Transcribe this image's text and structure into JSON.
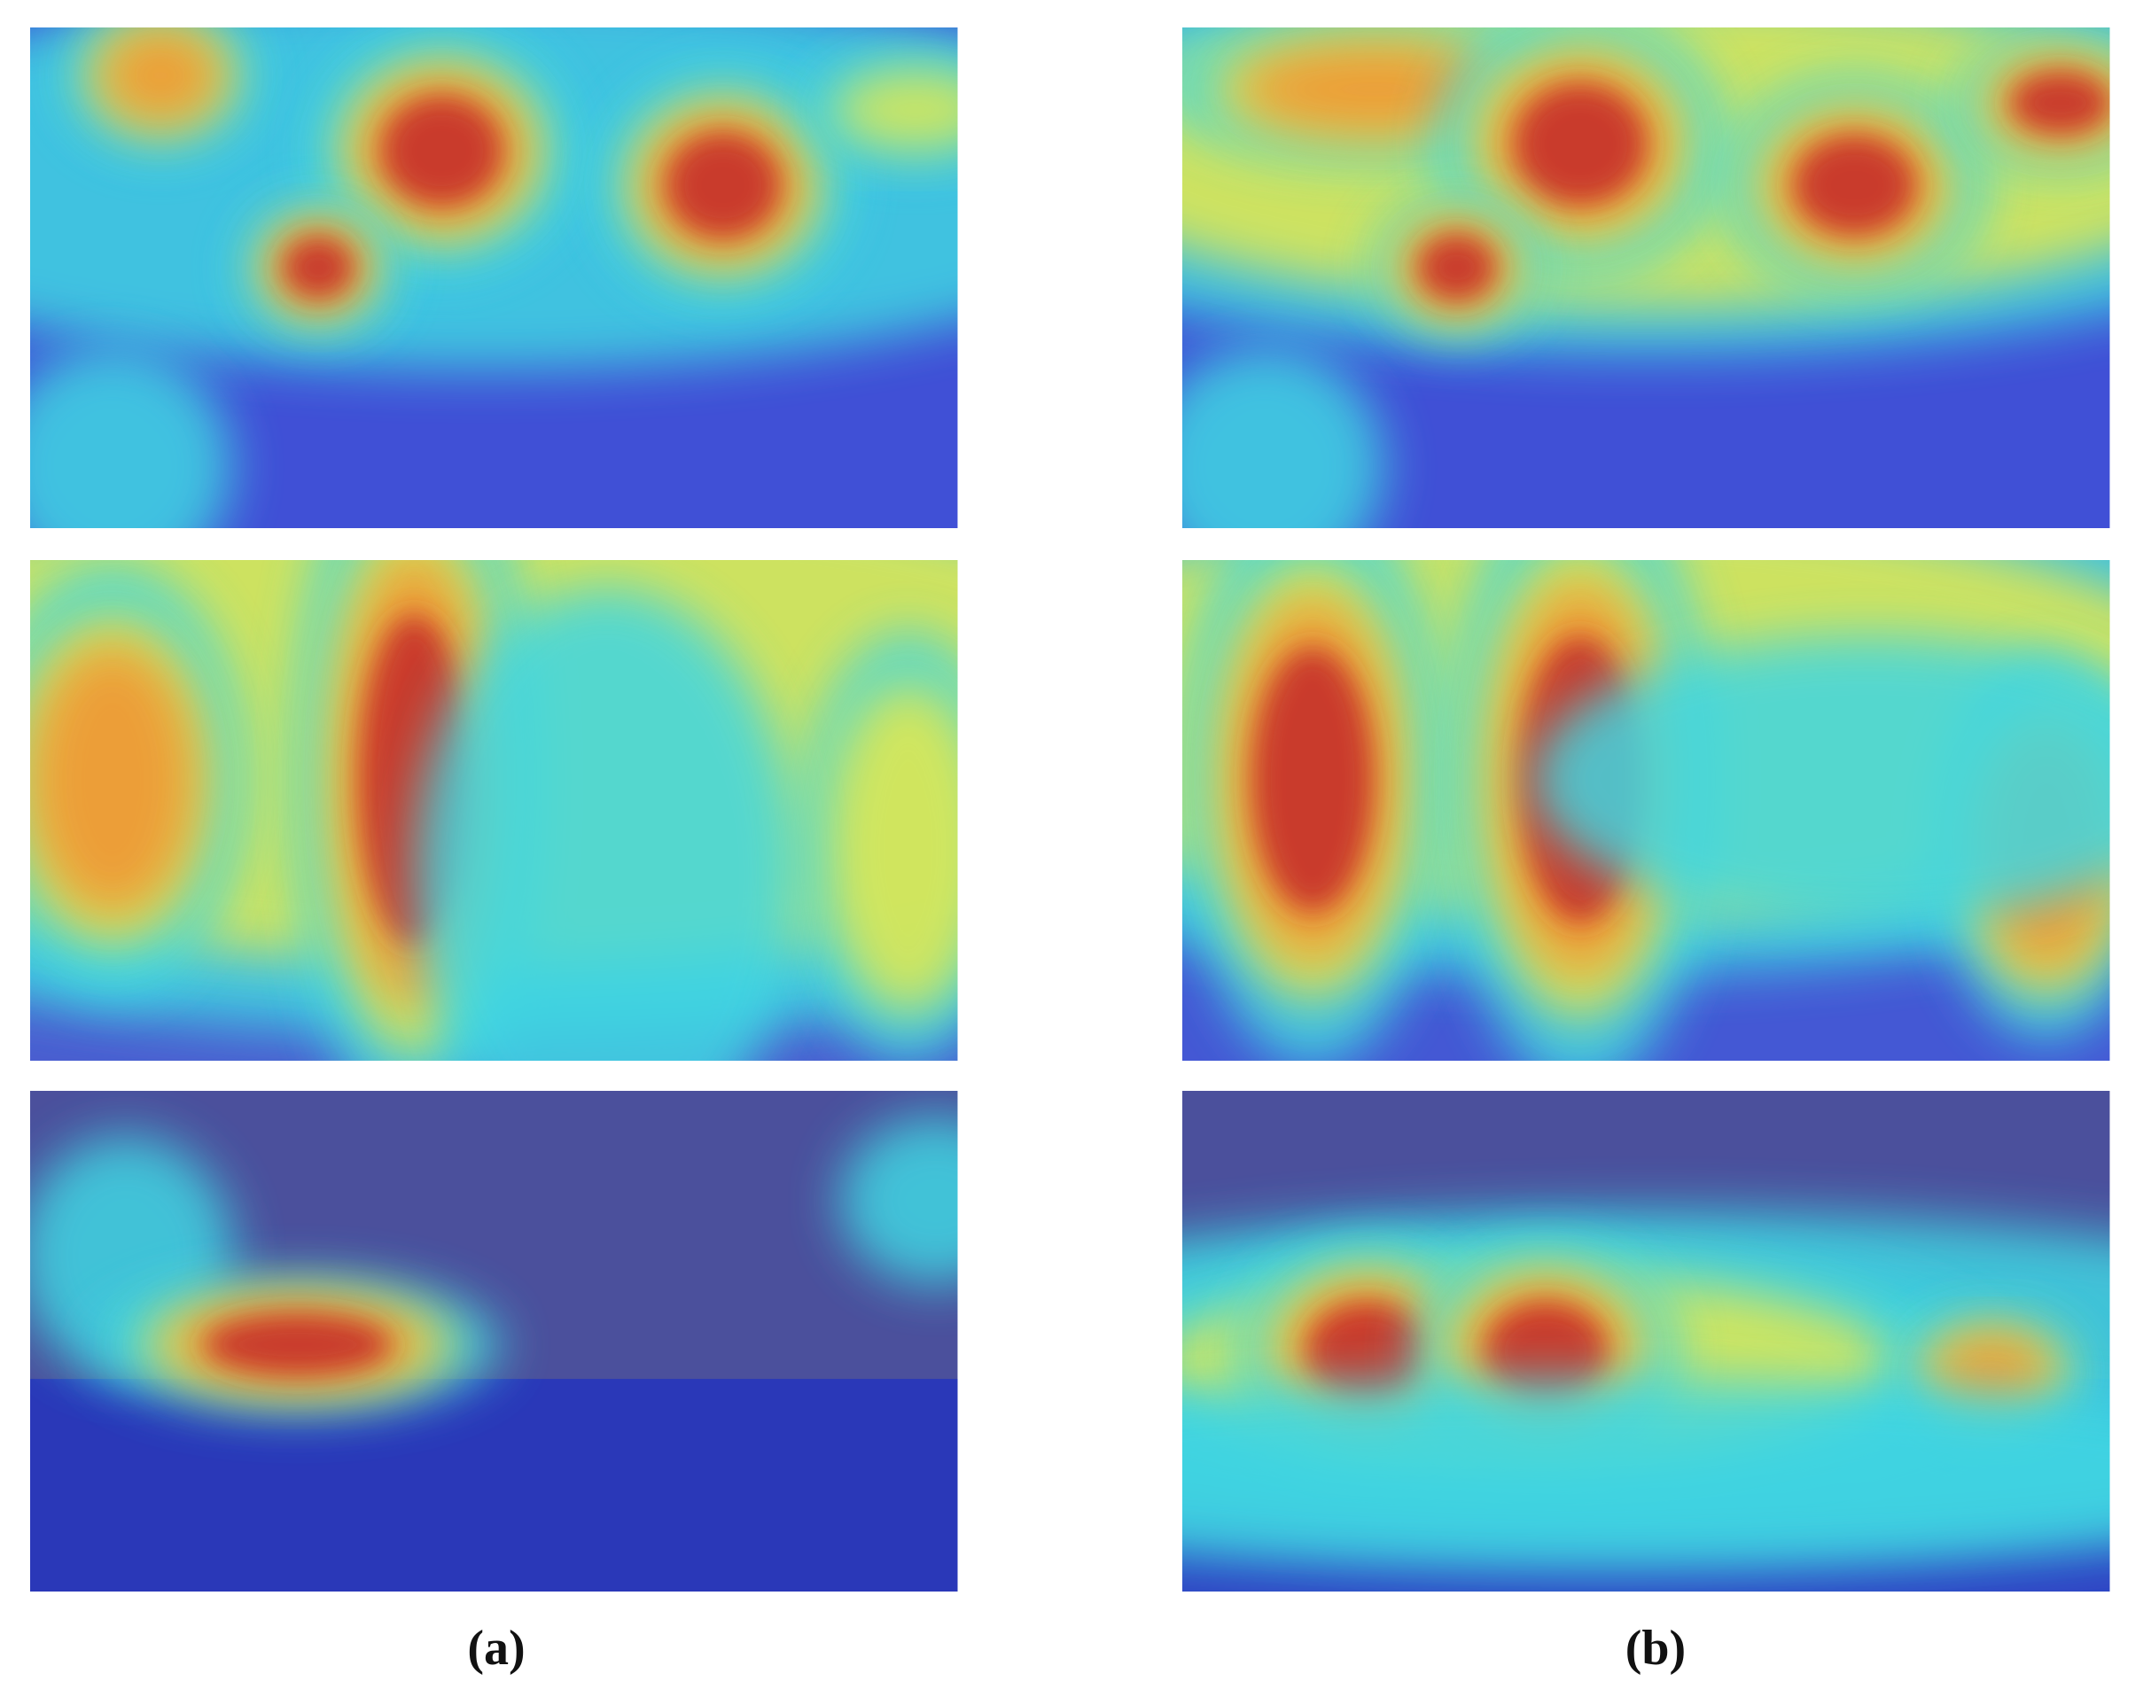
{
  "labels": [
    "(a)",
    "(b)"
  ]
}
